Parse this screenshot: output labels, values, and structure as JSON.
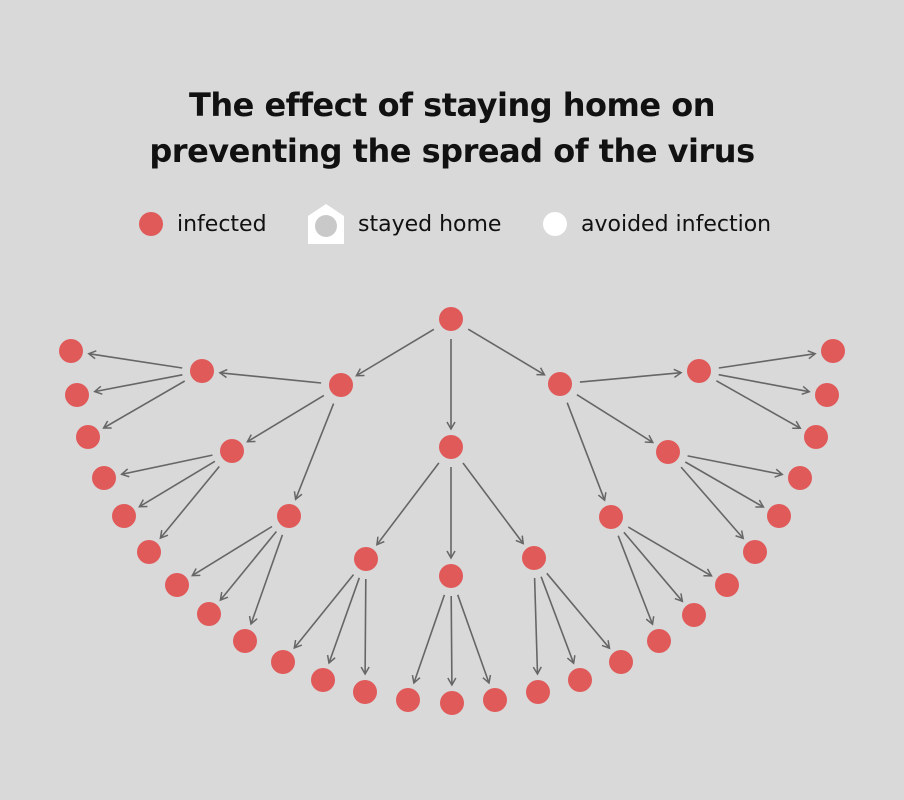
{
  "title": {
    "line1": "The effect of staying home on",
    "line2": "preventing the spread of the virus"
  },
  "legend": {
    "infected": "infected",
    "stayed_home": "stayed home",
    "avoided_infection": "avoided infection"
  },
  "colors": {
    "background": "#d9d9d9",
    "infected": "#e05a5a",
    "stayed_home_house": "#ffffff",
    "stayed_home_dot": "#c9c9c9",
    "avoided_infection": "#ffffff",
    "arrow": "#666666"
  },
  "icons": {
    "infected": "red-dot-icon",
    "stayed_home": "house-icon",
    "avoided_infection": "white-dot-icon"
  },
  "tree": {
    "root": "infected",
    "levels": [
      {
        "level": 1,
        "infected_count": 3
      },
      {
        "level": 2,
        "infected_count": 9
      },
      {
        "level": 3,
        "infected_count": 27
      }
    ],
    "branching_factor": 3,
    "total_infected": 40
  }
}
